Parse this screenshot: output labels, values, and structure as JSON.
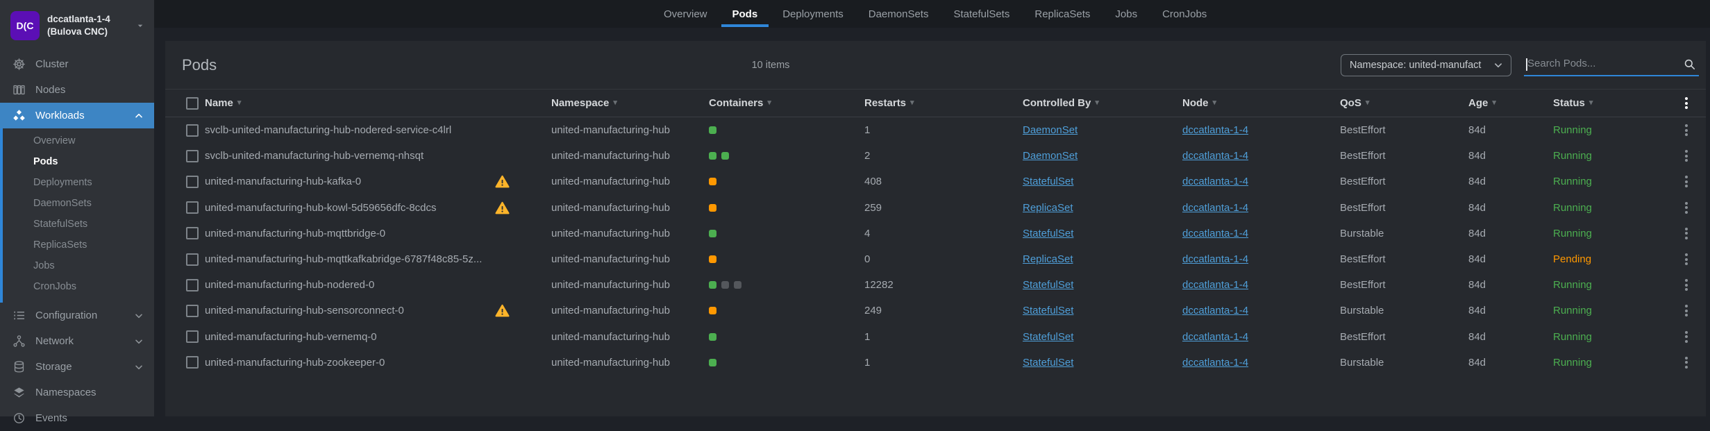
{
  "cluster": {
    "avatar": "D(C",
    "line1": "dccatlanta-1-4",
    "line2": "(Bulova CNC)"
  },
  "sidebar": {
    "items": [
      {
        "label": "Cluster",
        "icon": "helm-icon"
      },
      {
        "label": "Nodes",
        "icon": "nodes-icon"
      },
      {
        "label": "Workloads",
        "icon": "workloads-icon",
        "active": true,
        "expandable": true,
        "expanded": true,
        "children": [
          {
            "label": "Overview"
          },
          {
            "label": "Pods",
            "active": true
          },
          {
            "label": "Deployments"
          },
          {
            "label": "DaemonSets"
          },
          {
            "label": "StatefulSets"
          },
          {
            "label": "ReplicaSets"
          },
          {
            "label": "Jobs"
          },
          {
            "label": "CronJobs"
          }
        ]
      },
      {
        "label": "Configuration",
        "icon": "list-icon",
        "expandable": true,
        "expanded": false
      },
      {
        "label": "Network",
        "icon": "network-icon",
        "expandable": true,
        "expanded": false
      },
      {
        "label": "Storage",
        "icon": "storage-icon",
        "expandable": true,
        "expanded": false
      },
      {
        "label": "Namespaces",
        "icon": "namespaces-icon"
      },
      {
        "label": "Events",
        "icon": "events-icon"
      }
    ]
  },
  "tabs": [
    {
      "label": "Overview"
    },
    {
      "label": "Pods",
      "active": true
    },
    {
      "label": "Deployments"
    },
    {
      "label": "DaemonSets"
    },
    {
      "label": "StatefulSets"
    },
    {
      "label": "ReplicaSets"
    },
    {
      "label": "Jobs"
    },
    {
      "label": "CronJobs"
    }
  ],
  "page": {
    "title": "Pods",
    "items_count": "10 items"
  },
  "filters": {
    "namespace_value": "Namespace: united-manufact",
    "search_placeholder": "Search Pods..."
  },
  "table": {
    "columns": [
      "Name",
      "Namespace",
      "Containers",
      "Restarts",
      "Controlled By",
      "Node",
      "QoS",
      "Age",
      "Status"
    ],
    "rows": [
      {
        "name": "svclb-united-manufacturing-hub-nodered-service-c4lrl",
        "warning": false,
        "namespace": "united-manufacturing-hub",
        "containers": [
          "green"
        ],
        "restarts": "1",
        "controlled_by": "DaemonSet",
        "node": "dccatlanta-1-4",
        "qos": "BestEffort",
        "age": "84d",
        "status": "Running"
      },
      {
        "name": "svclb-united-manufacturing-hub-vernemq-nhsqt",
        "warning": false,
        "namespace": "united-manufacturing-hub",
        "containers": [
          "green",
          "green"
        ],
        "restarts": "2",
        "controlled_by": "DaemonSet",
        "node": "dccatlanta-1-4",
        "qos": "BestEffort",
        "age": "84d",
        "status": "Running"
      },
      {
        "name": "united-manufacturing-hub-kafka-0",
        "warning": true,
        "namespace": "united-manufacturing-hub",
        "containers": [
          "orange"
        ],
        "restarts": "408",
        "controlled_by": "StatefulSet",
        "node": "dccatlanta-1-4",
        "qos": "BestEffort",
        "age": "84d",
        "status": "Running"
      },
      {
        "name": "united-manufacturing-hub-kowl-5d59656dfc-8cdcs",
        "warning": true,
        "namespace": "united-manufacturing-hub",
        "containers": [
          "orange"
        ],
        "restarts": "259",
        "controlled_by": "ReplicaSet",
        "node": "dccatlanta-1-4",
        "qos": "BestEffort",
        "age": "84d",
        "status": "Running"
      },
      {
        "name": "united-manufacturing-hub-mqttbridge-0",
        "warning": false,
        "namespace": "united-manufacturing-hub",
        "containers": [
          "green"
        ],
        "restarts": "4",
        "controlled_by": "StatefulSet",
        "node": "dccatlanta-1-4",
        "qos": "Burstable",
        "age": "84d",
        "status": "Running"
      },
      {
        "name": "united-manufacturing-hub-mqttkafkabridge-6787f48c85-5z...",
        "warning": false,
        "namespace": "united-manufacturing-hub",
        "containers": [
          "orange"
        ],
        "restarts": "0",
        "controlled_by": "ReplicaSet",
        "node": "dccatlanta-1-4",
        "qos": "BestEffort",
        "age": "84d",
        "status": "Pending"
      },
      {
        "name": "united-manufacturing-hub-nodered-0",
        "warning": false,
        "namespace": "united-manufacturing-hub",
        "containers": [
          "green",
          "grey",
          "grey"
        ],
        "restarts": "12282",
        "controlled_by": "StatefulSet",
        "node": "dccatlanta-1-4",
        "qos": "BestEffort",
        "age": "84d",
        "status": "Running"
      },
      {
        "name": "united-manufacturing-hub-sensorconnect-0",
        "warning": true,
        "namespace": "united-manufacturing-hub",
        "containers": [
          "orange"
        ],
        "restarts": "249",
        "controlled_by": "StatefulSet",
        "node": "dccatlanta-1-4",
        "qos": "Burstable",
        "age": "84d",
        "status": "Running"
      },
      {
        "name": "united-manufacturing-hub-vernemq-0",
        "warning": false,
        "namespace": "united-manufacturing-hub",
        "containers": [
          "green"
        ],
        "restarts": "1",
        "controlled_by": "StatefulSet",
        "node": "dccatlanta-1-4",
        "qos": "BestEffort",
        "age": "84d",
        "status": "Running"
      },
      {
        "name": "united-manufacturing-hub-zookeeper-0",
        "warning": false,
        "namespace": "united-manufacturing-hub",
        "containers": [
          "green"
        ],
        "restarts": "1",
        "controlled_by": "StatefulSet",
        "node": "dccatlanta-1-4",
        "qos": "Burstable",
        "age": "84d",
        "status": "Running"
      }
    ]
  },
  "colors": {
    "accent_blue": "#2f86d8",
    "sidebar_active": "#3d85c4",
    "link": "#4f9fd9",
    "green": "#4caf50",
    "orange": "#ff9800",
    "grey_dot": "#54575c",
    "warning": "#fcb42a",
    "status_running": "#4caf50",
    "status_pending": "#ff9800",
    "avatar_purple": "#5b0fb5"
  }
}
